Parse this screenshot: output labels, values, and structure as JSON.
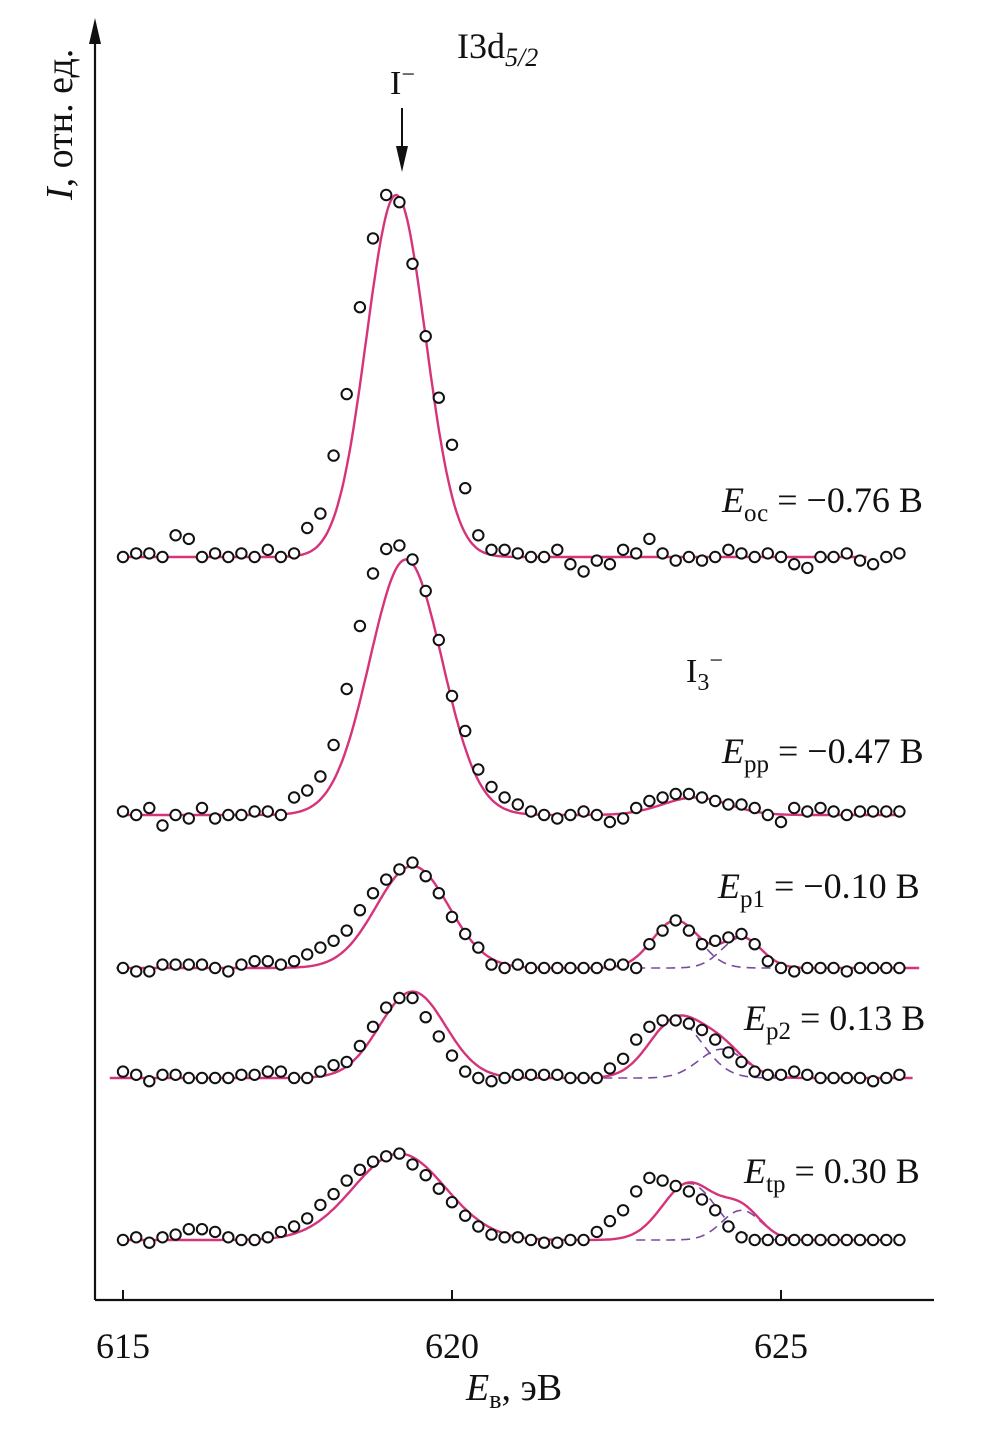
{
  "chart_data": {
    "type": "line",
    "title": "I3d",
    "title_sub": "5/2",
    "xlabel": "E",
    "xlabel_sub": "в",
    "xlabel_unit": ", эВ",
    "ylabel_italic": "I",
    "ylabel_rest": ", отн. ед.",
    "xlim": [
      615,
      627.4
    ],
    "xticks": [
      615,
      620,
      625
    ],
    "annotations": {
      "iodide": "I",
      "iodide_sup": "−",
      "triiodide": "I",
      "triiodide_sub": "3",
      "triiodide_sup": "−"
    },
    "colors": {
      "fit": "#d6337a",
      "component": "#7a4aa0",
      "points": "#111111",
      "axis": "#111111"
    },
    "legend": "none",
    "grid": false,
    "series": [
      {
        "name_main": "E",
        "name_sub": "ос",
        "name_value": " = −0.76 В",
        "baseline": 0.0,
        "components": [
          {
            "center": 619.15,
            "amp": 10.0,
            "sigma": 0.45
          }
        ],
        "x": [
          615.0,
          615.2,
          615.4,
          615.6,
          615.8,
          616.0,
          616.2,
          616.4,
          616.6,
          616.8,
          617.0,
          617.2,
          617.4,
          617.6,
          617.8,
          618.0,
          618.2,
          618.4,
          618.6,
          618.8,
          619.0,
          619.2,
          619.4,
          619.6,
          619.8,
          620.0,
          620.2,
          620.4,
          620.6,
          620.8,
          621.0,
          621.2,
          621.4,
          621.6,
          621.8,
          622.0,
          622.2,
          622.4,
          622.6,
          622.8,
          623.0,
          623.2,
          623.4,
          623.6,
          623.8,
          624.0,
          624.2,
          624.4,
          624.6,
          624.8,
          625.0,
          625.2,
          625.4,
          625.6,
          625.8,
          626.0,
          626.2,
          626.4,
          626.6,
          626.8
        ],
        "y": [
          0.0,
          0.1,
          0.1,
          0.0,
          0.6,
          0.5,
          0.0,
          0.1,
          0.0,
          0.1,
          0.0,
          0.2,
          0.0,
          0.1,
          0.8,
          1.2,
          2.8,
          4.5,
          6.9,
          8.8,
          10.0,
          9.8,
          8.1,
          6.1,
          4.4,
          3.1,
          1.9,
          0.6,
          0.2,
          0.2,
          0.1,
          0.0,
          0.0,
          0.2,
          -0.2,
          -0.4,
          -0.1,
          -0.2,
          0.2,
          0.1,
          0.5,
          0.1,
          -0.1,
          0.0,
          -0.1,
          0.0,
          0.2,
          0.1,
          0.0,
          0.1,
          0.0,
          -0.2,
          -0.3,
          0.0,
          0.0,
          0.1,
          -0.1,
          -0.2,
          0.0,
          0.1
        ]
      },
      {
        "name_main": "E",
        "name_sub": "рр",
        "name_value": " = −0.47 В",
        "baseline": 0.0,
        "components": [
          {
            "center": 619.3,
            "amp": 7.3,
            "sigma": 0.55
          },
          {
            "center": 623.7,
            "amp": 0.5,
            "sigma": 0.5
          }
        ],
        "x": [
          615.0,
          615.2,
          615.4,
          615.6,
          615.8,
          616.0,
          616.2,
          616.4,
          616.6,
          616.8,
          617.0,
          617.2,
          617.4,
          617.6,
          617.8,
          618.0,
          618.2,
          618.4,
          618.6,
          618.8,
          619.0,
          619.2,
          619.4,
          619.6,
          619.8,
          620.0,
          620.2,
          620.4,
          620.6,
          620.8,
          621.0,
          621.2,
          621.4,
          621.6,
          621.8,
          622.0,
          622.2,
          622.4,
          622.6,
          622.8,
          623.0,
          623.2,
          623.4,
          623.6,
          623.8,
          624.0,
          624.2,
          624.4,
          624.6,
          624.8,
          625.0,
          625.2,
          625.4,
          625.6,
          625.8,
          626.0,
          626.2,
          626.4,
          626.6,
          626.8
        ],
        "y": [
          0.1,
          0.0,
          0.2,
          -0.3,
          0.0,
          -0.1,
          0.2,
          -0.1,
          0.0,
          0.0,
          0.1,
          0.1,
          0.0,
          0.5,
          0.7,
          1.1,
          2.0,
          3.6,
          5.4,
          6.9,
          7.6,
          7.7,
          7.3,
          6.4,
          5.0,
          3.4,
          2.4,
          1.3,
          0.8,
          0.5,
          0.3,
          0.1,
          0.0,
          -0.1,
          0.0,
          0.1,
          0.0,
          -0.2,
          -0.1,
          0.2,
          0.4,
          0.5,
          0.6,
          0.6,
          0.5,
          0.4,
          0.3,
          0.3,
          0.2,
          0.0,
          -0.2,
          0.2,
          0.1,
          0.2,
          0.1,
          0.0,
          0.1,
          0.1,
          0.1,
          0.1
        ]
      },
      {
        "name_main": "E",
        "name_sub": "р1",
        "name_value": " = −0.10 В",
        "baseline": 0.0,
        "components": [
          {
            "center": 619.4,
            "amp": 3.0,
            "sigma": 0.55
          },
          {
            "center": 623.4,
            "amp": 1.4,
            "sigma": 0.35
          },
          {
            "center": 624.4,
            "amp": 0.9,
            "sigma": 0.3
          }
        ],
        "x": [
          615.0,
          615.2,
          615.4,
          615.6,
          615.8,
          616.0,
          616.2,
          616.4,
          616.6,
          616.8,
          617.0,
          617.2,
          617.4,
          617.6,
          617.8,
          618.0,
          618.2,
          618.4,
          618.6,
          618.8,
          619.0,
          619.2,
          619.4,
          619.6,
          619.8,
          620.0,
          620.2,
          620.4,
          620.6,
          620.8,
          621.0,
          621.2,
          621.4,
          621.6,
          621.8,
          622.0,
          622.2,
          622.4,
          622.6,
          622.8,
          623.0,
          623.2,
          623.4,
          623.6,
          623.8,
          624.0,
          624.2,
          624.4,
          624.6,
          624.8,
          625.0,
          625.2,
          625.4,
          625.6,
          625.8,
          626.0,
          626.2,
          626.4,
          626.6,
          626.8
        ],
        "y": [
          0.0,
          -0.1,
          -0.1,
          0.1,
          0.1,
          0.1,
          0.1,
          0.0,
          -0.1,
          0.1,
          0.2,
          0.2,
          0.1,
          0.2,
          0.4,
          0.6,
          0.8,
          1.1,
          1.7,
          2.2,
          2.6,
          2.9,
          3.1,
          2.7,
          2.2,
          1.5,
          1.0,
          0.6,
          0.1,
          0.0,
          0.1,
          0.0,
          0.0,
          0.0,
          0.0,
          0.0,
          0.0,
          0.1,
          0.1,
          0.0,
          0.7,
          1.1,
          1.4,
          1.1,
          0.7,
          0.8,
          0.9,
          1.0,
          0.7,
          0.2,
          0.0,
          -0.1,
          0.0,
          0.0,
          0.0,
          -0.1,
          0.0,
          0.0,
          0.0,
          0.0
        ]
      },
      {
        "name_main": "E",
        "name_sub": "р2",
        "name_value": " = 0.13 В",
        "baseline": 0.0,
        "components": [
          {
            "center": 619.4,
            "amp": 2.7,
            "sigma": 0.5
          },
          {
            "center": 623.4,
            "amp": 1.8,
            "sigma": 0.4
          },
          {
            "center": 624.1,
            "amp": 0.9,
            "sigma": 0.35
          }
        ],
        "x": [
          615.0,
          615.2,
          615.4,
          615.6,
          615.8,
          616.0,
          616.2,
          616.4,
          616.6,
          616.8,
          617.0,
          617.2,
          617.4,
          617.6,
          617.8,
          618.0,
          618.2,
          618.4,
          618.6,
          618.8,
          619.0,
          619.2,
          619.4,
          619.6,
          619.8,
          620.0,
          620.2,
          620.4,
          620.6,
          620.8,
          621.0,
          621.2,
          621.4,
          621.6,
          621.8,
          622.0,
          622.2,
          622.4,
          622.6,
          622.8,
          623.0,
          623.2,
          623.4,
          623.6,
          623.8,
          624.0,
          624.2,
          624.4,
          624.6,
          624.8,
          625.0,
          625.2,
          625.4,
          625.6,
          625.8,
          626.0,
          626.2,
          626.4,
          626.6,
          626.8
        ],
        "y": [
          0.2,
          0.1,
          -0.1,
          0.1,
          0.1,
          0.0,
          0.0,
          0.0,
          0.0,
          0.1,
          0.1,
          0.2,
          0.2,
          0.0,
          0.0,
          0.2,
          0.4,
          0.5,
          1.0,
          1.6,
          2.2,
          2.5,
          2.5,
          1.9,
          1.3,
          0.7,
          0.2,
          0.0,
          -0.1,
          0.0,
          0.1,
          0.1,
          0.1,
          0.1,
          0.0,
          0.0,
          0.0,
          0.3,
          0.6,
          1.2,
          1.6,
          1.8,
          1.8,
          1.7,
          1.5,
          1.2,
          0.8,
          0.5,
          0.2,
          0.1,
          0.1,
          0.2,
          0.1,
          0.0,
          0.0,
          0.0,
          0.0,
          -0.1,
          0.0,
          0.1
        ]
      },
      {
        "name_main": "E",
        "name_sub": "tр",
        "name_value": " = 0.30 В",
        "baseline": 0.0,
        "components": [
          {
            "center": 619.2,
            "amp": 3.2,
            "sigma": 0.7
          },
          {
            "center": 623.6,
            "amp": 2.1,
            "sigma": 0.4
          },
          {
            "center": 624.4,
            "amp": 1.1,
            "sigma": 0.3
          }
        ],
        "x": [
          615.0,
          615.2,
          615.4,
          615.6,
          615.8,
          616.0,
          616.2,
          616.4,
          616.6,
          616.8,
          617.0,
          617.2,
          617.4,
          617.6,
          617.8,
          618.0,
          618.2,
          618.4,
          618.6,
          618.8,
          619.0,
          619.2,
          619.4,
          619.6,
          619.8,
          620.0,
          620.2,
          620.4,
          620.6,
          620.8,
          621.0,
          621.2,
          621.4,
          621.6,
          621.8,
          622.0,
          622.2,
          622.4,
          622.6,
          622.8,
          623.0,
          623.2,
          623.4,
          623.6,
          623.8,
          624.0,
          624.2,
          624.4,
          624.6,
          624.8,
          625.0,
          625.2,
          625.4,
          625.6,
          625.8,
          626.0,
          626.2,
          626.4,
          626.6,
          626.8
        ],
        "y": [
          0.0,
          0.1,
          -0.1,
          0.1,
          0.2,
          0.4,
          0.4,
          0.3,
          0.1,
          0.0,
          0.0,
          0.1,
          0.3,
          0.5,
          0.8,
          1.3,
          1.7,
          2.2,
          2.6,
          2.9,
          3.1,
          3.2,
          2.8,
          2.4,
          1.9,
          1.4,
          0.9,
          0.5,
          0.2,
          0.1,
          0.1,
          0.0,
          -0.1,
          -0.1,
          0.0,
          0.0,
          0.3,
          0.7,
          1.1,
          1.8,
          2.3,
          2.2,
          2.0,
          1.8,
          1.5,
          1.1,
          0.5,
          0.1,
          0.0,
          0.0,
          0.0,
          0.0,
          0.0,
          0.0,
          0.0,
          0.0,
          0.0,
          0.0,
          0.0,
          0.0
        ]
      }
    ]
  }
}
